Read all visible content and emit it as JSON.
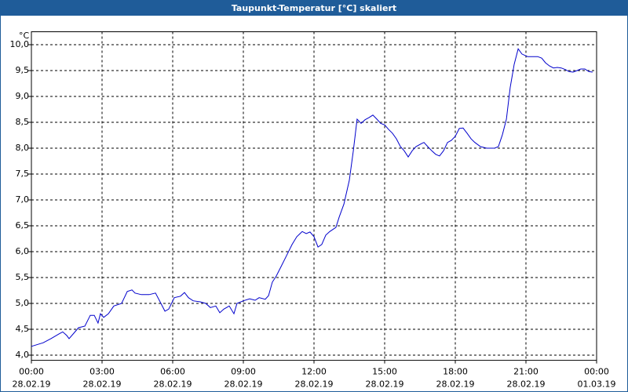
{
  "chart_data": {
    "type": "line",
    "title": "Taupunkt-Temperatur [°C] skaliert",
    "y_unit": "°C",
    "xlim": [
      0,
      24
    ],
    "ylim": [
      3.9,
      10.25
    ],
    "grid": true,
    "xticks": [
      {
        "value": 0,
        "label": "00:00",
        "date": "28.02.19"
      },
      {
        "value": 3,
        "label": "03:00",
        "date": "28.02.19"
      },
      {
        "value": 6,
        "label": "06:00",
        "date": "28.02.19"
      },
      {
        "value": 9,
        "label": "09:00",
        "date": "28.02.19"
      },
      {
        "value": 12,
        "label": "12:00",
        "date": "28.02.19"
      },
      {
        "value": 15,
        "label": "15:00",
        "date": "28.02.19"
      },
      {
        "value": 18,
        "label": "18:00",
        "date": "28.02.19"
      },
      {
        "value": 21,
        "label": "21:00",
        "date": "28.02.19"
      },
      {
        "value": 24,
        "label": "00:00",
        "date": "01.03.19"
      }
    ],
    "yticks": [
      {
        "value": 4.0,
        "label": "4,0"
      },
      {
        "value": 4.5,
        "label": "4,5"
      },
      {
        "value": 5.0,
        "label": "5,0"
      },
      {
        "value": 5.5,
        "label": "5,5"
      },
      {
        "value": 6.0,
        "label": "6,0"
      },
      {
        "value": 6.5,
        "label": "6,5"
      },
      {
        "value": 7.0,
        "label": "7,0"
      },
      {
        "value": 7.5,
        "label": "7,5"
      },
      {
        "value": 8.0,
        "label": "8,0"
      },
      {
        "value": 8.5,
        "label": "8,5"
      },
      {
        "value": 9.0,
        "label": "9,0"
      },
      {
        "value": 9.5,
        "label": "9,5"
      },
      {
        "value": 10.0,
        "label": "10,0"
      }
    ],
    "series": [
      {
        "color": "#0000cc",
        "x": [
          0,
          0.5,
          0.83,
          1.17,
          1.33,
          1.5,
          1.6,
          1.83,
          2.0,
          2.27,
          2.5,
          2.67,
          2.83,
          2.93,
          3.07,
          3.27,
          3.5,
          3.83,
          4.07,
          4.27,
          4.4,
          4.67,
          5.0,
          5.27,
          5.5,
          5.67,
          5.83,
          6.07,
          6.33,
          6.5,
          6.67,
          6.87,
          7.17,
          7.4,
          7.6,
          7.83,
          8.0,
          8.17,
          8.4,
          8.6,
          8.73,
          9.0,
          9.27,
          9.5,
          9.67,
          9.93,
          10.07,
          10.23,
          10.4,
          10.6,
          10.83,
          11.07,
          11.27,
          11.5,
          11.67,
          11.83,
          12.0,
          12.17,
          12.33,
          12.5,
          12.67,
          12.93,
          13.07,
          13.27,
          13.5,
          13.67,
          13.83,
          14.0,
          14.17,
          14.33,
          14.5,
          14.67,
          14.83,
          15.0,
          15.17,
          15.33,
          15.5,
          15.67,
          15.83,
          16.0,
          16.17,
          16.33,
          16.57,
          16.67,
          16.83,
          17.0,
          17.17,
          17.33,
          17.5,
          17.67,
          17.83,
          18.0,
          18.17,
          18.33,
          18.5,
          18.67,
          18.83,
          19.07,
          19.33,
          19.67,
          19.83,
          20.0,
          20.17,
          20.33,
          20.5,
          20.67,
          20.83,
          21.07,
          21.27,
          21.5,
          21.67,
          21.83,
          22.0,
          22.17,
          22.33,
          22.5,
          22.67,
          22.83,
          23.0,
          23.17,
          23.33,
          23.5,
          23.67,
          23.83
        ],
        "values": [
          4.17,
          4.24,
          4.32,
          4.41,
          4.45,
          4.38,
          4.32,
          4.44,
          4.53,
          4.56,
          4.77,
          4.77,
          4.62,
          4.8,
          4.73,
          4.8,
          4.95,
          5.0,
          5.23,
          5.26,
          5.2,
          5.17,
          5.17,
          5.2,
          5.0,
          4.85,
          4.89,
          5.11,
          5.14,
          5.21,
          5.11,
          5.05,
          5.03,
          5.0,
          4.92,
          4.95,
          4.82,
          4.89,
          4.95,
          4.8,
          5.0,
          5.05,
          5.09,
          5.06,
          5.11,
          5.08,
          5.15,
          5.41,
          5.53,
          5.71,
          5.92,
          6.14,
          6.29,
          6.39,
          6.35,
          6.38,
          6.29,
          6.09,
          6.14,
          6.32,
          6.39,
          6.47,
          6.67,
          6.92,
          7.38,
          7.95,
          8.56,
          8.48,
          8.55,
          8.59,
          8.64,
          8.56,
          8.48,
          8.45,
          8.36,
          8.29,
          8.18,
          8.03,
          7.95,
          7.83,
          7.95,
          8.03,
          8.09,
          8.11,
          8.03,
          7.95,
          7.88,
          7.85,
          7.95,
          8.11,
          8.15,
          8.23,
          8.38,
          8.39,
          8.29,
          8.18,
          8.11,
          8.03,
          8.0,
          8.0,
          8.03,
          8.26,
          8.56,
          9.17,
          9.62,
          9.92,
          9.82,
          9.77,
          9.77,
          9.77,
          9.74,
          9.65,
          9.59,
          9.55,
          9.56,
          9.55,
          9.52,
          9.48,
          9.47,
          9.5,
          9.53,
          9.53,
          9.48,
          9.47
        ]
      }
    ]
  }
}
